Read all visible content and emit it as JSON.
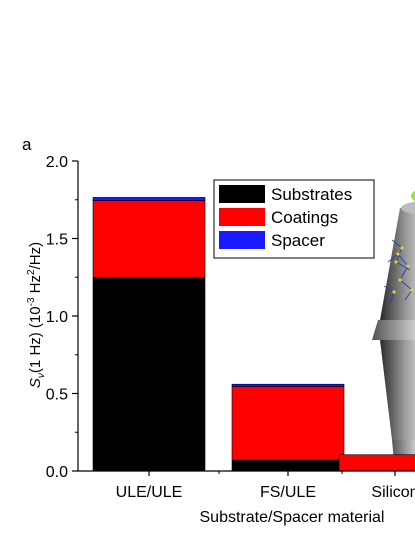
{
  "chart_data": {
    "type": "bar",
    "stacked": true,
    "panel_label": "a",
    "title": "",
    "xlabel": "Substrate/Spacer material",
    "ylabel": {
      "symbol": "S",
      "subscript": "ν",
      "main": "(1 Hz) (10",
      "exp1": "-3",
      "mid": " Hz",
      "exp2": "2",
      "tail": "/Hz)"
    },
    "ylim": [
      0,
      2.0
    ],
    "yticks": [
      "0.0",
      "0.5",
      "1.0",
      "1.5",
      "2.0"
    ],
    "categories": [
      "ULE/ULE",
      "FS/ULE",
      "Silicon"
    ],
    "series": [
      {
        "name": "Substrates",
        "color": "#000000",
        "values": [
          1.25,
          0.07,
          0.0
        ]
      },
      {
        "name": "Coatings",
        "color": "#ff0000",
        "values": [
          0.495,
          0.475,
          0.105
        ]
      },
      {
        "name": "Spacer",
        "color": "#1a1aff",
        "values": [
          0.02,
          0.015,
          0.0
        ]
      }
    ],
    "legend_position": "top-center",
    "grid": false,
    "inset": "cavity-illustration"
  }
}
